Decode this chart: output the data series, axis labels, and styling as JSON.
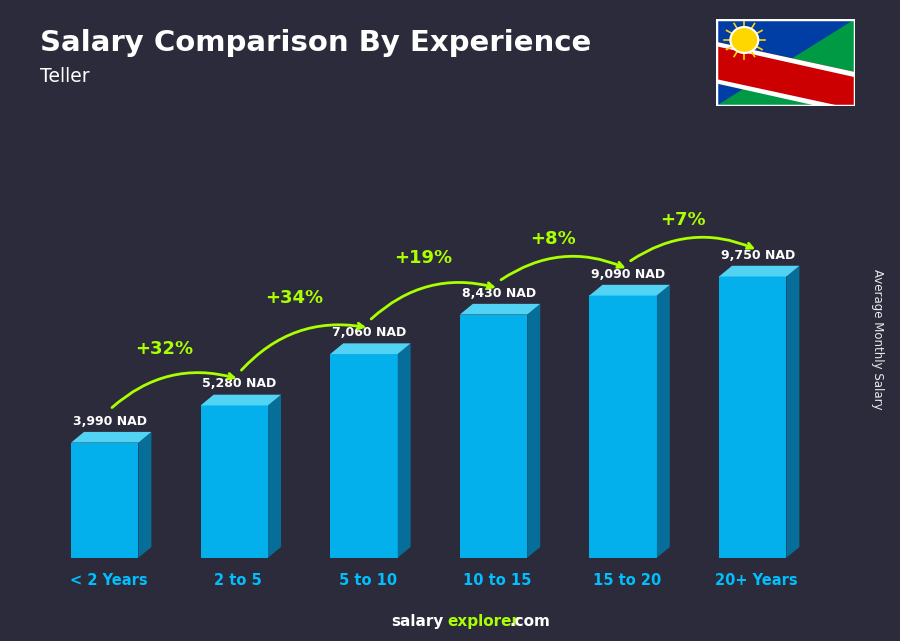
{
  "title": "Salary Comparison By Experience",
  "subtitle": "Teller",
  "ylabel": "Average Monthly Salary",
  "categories": [
    "< 2 Years",
    "2 to 5",
    "5 to 10",
    "10 to 15",
    "15 to 20",
    "20+ Years"
  ],
  "values": [
    3990,
    5280,
    7060,
    8430,
    9090,
    9750
  ],
  "value_labels": [
    "3,990 NAD",
    "5,280 NAD",
    "7,060 NAD",
    "8,430 NAD",
    "9,090 NAD",
    "9,750 NAD"
  ],
  "pct_changes": [
    null,
    "+32%",
    "+34%",
    "+19%",
    "+8%",
    "+7%"
  ],
  "bar_face_color": "#00BFFF",
  "bar_side_color": "#007AAA",
  "bar_top_color": "#55DDFF",
  "bg_color": "#2b2b3b",
  "title_color": "#ffffff",
  "value_label_color": "#ffffff",
  "pct_color": "#AAFF00",
  "xtick_color": "#00BFFF",
  "ylabel_color": "#ffffff",
  "footer_salary_color": "#ffffff",
  "footer_explorer_color": "#AAFF00",
  "footer_com_color": "#ffffff",
  "figsize": [
    9.0,
    6.41
  ],
  "dpi": 100
}
